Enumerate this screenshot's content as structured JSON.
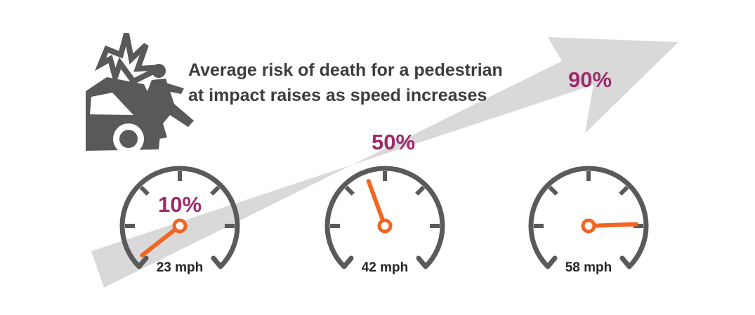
{
  "headline": {
    "line1": "Average risk of death for a pedestrian",
    "line2": "at impact raises as speed increases"
  },
  "gauges": [
    {
      "percent_label": "10%",
      "speed_label": "23 mph",
      "risk_fraction": 0.1
    },
    {
      "percent_label": "50%",
      "speed_label": "42 mph",
      "risk_fraction": 0.5
    },
    {
      "percent_label": "90%",
      "speed_label": "58 mph",
      "risk_fraction": 0.9
    }
  ],
  "colors": {
    "arrow": "#d9d9d9",
    "gauge_ring": "#5a5a5a",
    "needle": "#f26522",
    "percent_text": "#9e2a6c",
    "icon": "#595959"
  },
  "icons": {
    "collision": "car-pedestrian-collision-icon"
  }
}
